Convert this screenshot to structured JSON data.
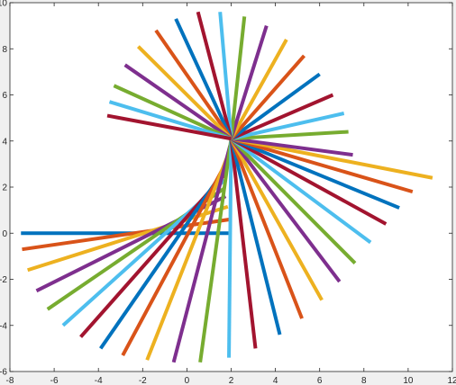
{
  "chart_data": {
    "type": "line",
    "title": "",
    "xlabel": "",
    "ylabel": "",
    "xlim": [
      -8,
      12
    ],
    "ylim": [
      -6,
      10
    ],
    "xticks": [
      -8,
      -6,
      -4,
      -2,
      0,
      2,
      4,
      6,
      8,
      10,
      12
    ],
    "yticks": [
      -6,
      -4,
      -2,
      0,
      2,
      4,
      6,
      8,
      10
    ],
    "grid": false,
    "legend": "none",
    "colors": [
      "#0072BD",
      "#D95319",
      "#EDB120",
      "#7E2F8E",
      "#77AC30",
      "#4DBEEE",
      "#A2142F"
    ],
    "description_of_series": "fan of line segments; each segment joins a point on the inner curve to a point on the outer curve",
    "series": [
      {
        "x": [
          2.0,
          -7.5
        ],
        "y": [
          0.0,
          0.0
        ]
      },
      {
        "x": [
          1.95,
          -7.45
        ],
        "y": [
          0.6,
          -0.7
        ]
      },
      {
        "x": [
          1.85,
          -7.2
        ],
        "y": [
          1.15,
          -1.6
        ]
      },
      {
        "x": [
          1.75,
          -6.8
        ],
        "y": [
          1.6,
          -2.5
        ]
      },
      {
        "x": [
          1.7,
          -6.3
        ],
        "y": [
          1.95,
          -3.3
        ]
      },
      {
        "x": [
          1.7,
          -5.6
        ],
        "y": [
          2.3,
          -4.0
        ]
      },
      {
        "x": [
          1.75,
          -4.8
        ],
        "y": [
          2.6,
          -4.5
        ]
      },
      {
        "x": [
          1.8,
          -3.9
        ],
        "y": [
          2.9,
          -5.0
        ]
      },
      {
        "x": [
          1.85,
          -2.9
        ],
        "y": [
          3.2,
          -5.3
        ]
      },
      {
        "x": [
          1.9,
          -1.8
        ],
        "y": [
          3.5,
          -5.5
        ]
      },
      {
        "x": [
          1.95,
          -0.6
        ],
        "y": [
          3.8,
          -5.6
        ]
      },
      {
        "x": [
          2.0,
          0.6
        ],
        "y": [
          4.1,
          -5.6
        ]
      },
      {
        "x": [
          2.0,
          1.9
        ],
        "y": [
          4.1,
          -5.4
        ]
      },
      {
        "x": [
          2.0,
          3.1
        ],
        "y": [
          4.1,
          -5.0
        ]
      },
      {
        "x": [
          2.0,
          4.2
        ],
        "y": [
          4.1,
          -4.4
        ]
      },
      {
        "x": [
          2.0,
          5.2
        ],
        "y": [
          4.1,
          -3.7
        ]
      },
      {
        "x": [
          2.0,
          6.1
        ],
        "y": [
          4.1,
          -2.9
        ]
      },
      {
        "x": [
          2.0,
          6.9
        ],
        "y": [
          4.1,
          -2.1
        ]
      },
      {
        "x": [
          2.0,
          7.6
        ],
        "y": [
          4.1,
          -1.3
        ]
      },
      {
        "x": [
          2.0,
          8.3
        ],
        "y": [
          4.1,
          -0.4
        ]
      },
      {
        "x": [
          2.0,
          9.0
        ],
        "y": [
          4.1,
          0.4
        ]
      },
      {
        "x": [
          2.0,
          9.6
        ],
        "y": [
          4.1,
          1.1
        ]
      },
      {
        "x": [
          2.0,
          10.2
        ],
        "y": [
          4.1,
          1.8
        ]
      },
      {
        "x": [
          2.0,
          11.1
        ],
        "y": [
          4.1,
          2.4
        ]
      },
      {
        "x": [
          2.0,
          7.5
        ],
        "y": [
          4.1,
          3.4
        ]
      },
      {
        "x": [
          2.0,
          7.3
        ],
        "y": [
          4.1,
          4.4
        ]
      },
      {
        "x": [
          2.0,
          7.1
        ],
        "y": [
          4.1,
          5.2
        ]
      },
      {
        "x": [
          2.0,
          6.6
        ],
        "y": [
          4.1,
          6.0
        ]
      },
      {
        "x": [
          2.0,
          6.0
        ],
        "y": [
          4.1,
          6.9
        ]
      },
      {
        "x": [
          2.0,
          5.3
        ],
        "y": [
          4.1,
          7.7
        ]
      },
      {
        "x": [
          2.0,
          4.5
        ],
        "y": [
          4.1,
          8.4
        ]
      },
      {
        "x": [
          2.0,
          3.6
        ],
        "y": [
          4.1,
          9.0
        ]
      },
      {
        "x": [
          2.0,
          2.6
        ],
        "y": [
          4.1,
          9.4
        ]
      },
      {
        "x": [
          2.0,
          1.5
        ],
        "y": [
          4.1,
          9.6
        ]
      },
      {
        "x": [
          2.0,
          0.5
        ],
        "y": [
          4.1,
          9.6
        ]
      },
      {
        "x": [
          2.0,
          -0.5
        ],
        "y": [
          4.1,
          9.3
        ]
      },
      {
        "x": [
          2.0,
          -1.4
        ],
        "y": [
          4.1,
          8.8
        ]
      },
      {
        "x": [
          2.0,
          -2.2
        ],
        "y": [
          4.1,
          8.1
        ]
      },
      {
        "x": [
          2.0,
          -2.8
        ],
        "y": [
          4.1,
          7.3
        ]
      },
      {
        "x": [
          2.0,
          -3.3
        ],
        "y": [
          4.1,
          6.4
        ]
      },
      {
        "x": [
          2.0,
          -3.5
        ],
        "y": [
          4.1,
          5.7
        ]
      },
      {
        "x": [
          2.0,
          -3.6
        ],
        "y": [
          4.1,
          5.1
        ]
      }
    ]
  }
}
